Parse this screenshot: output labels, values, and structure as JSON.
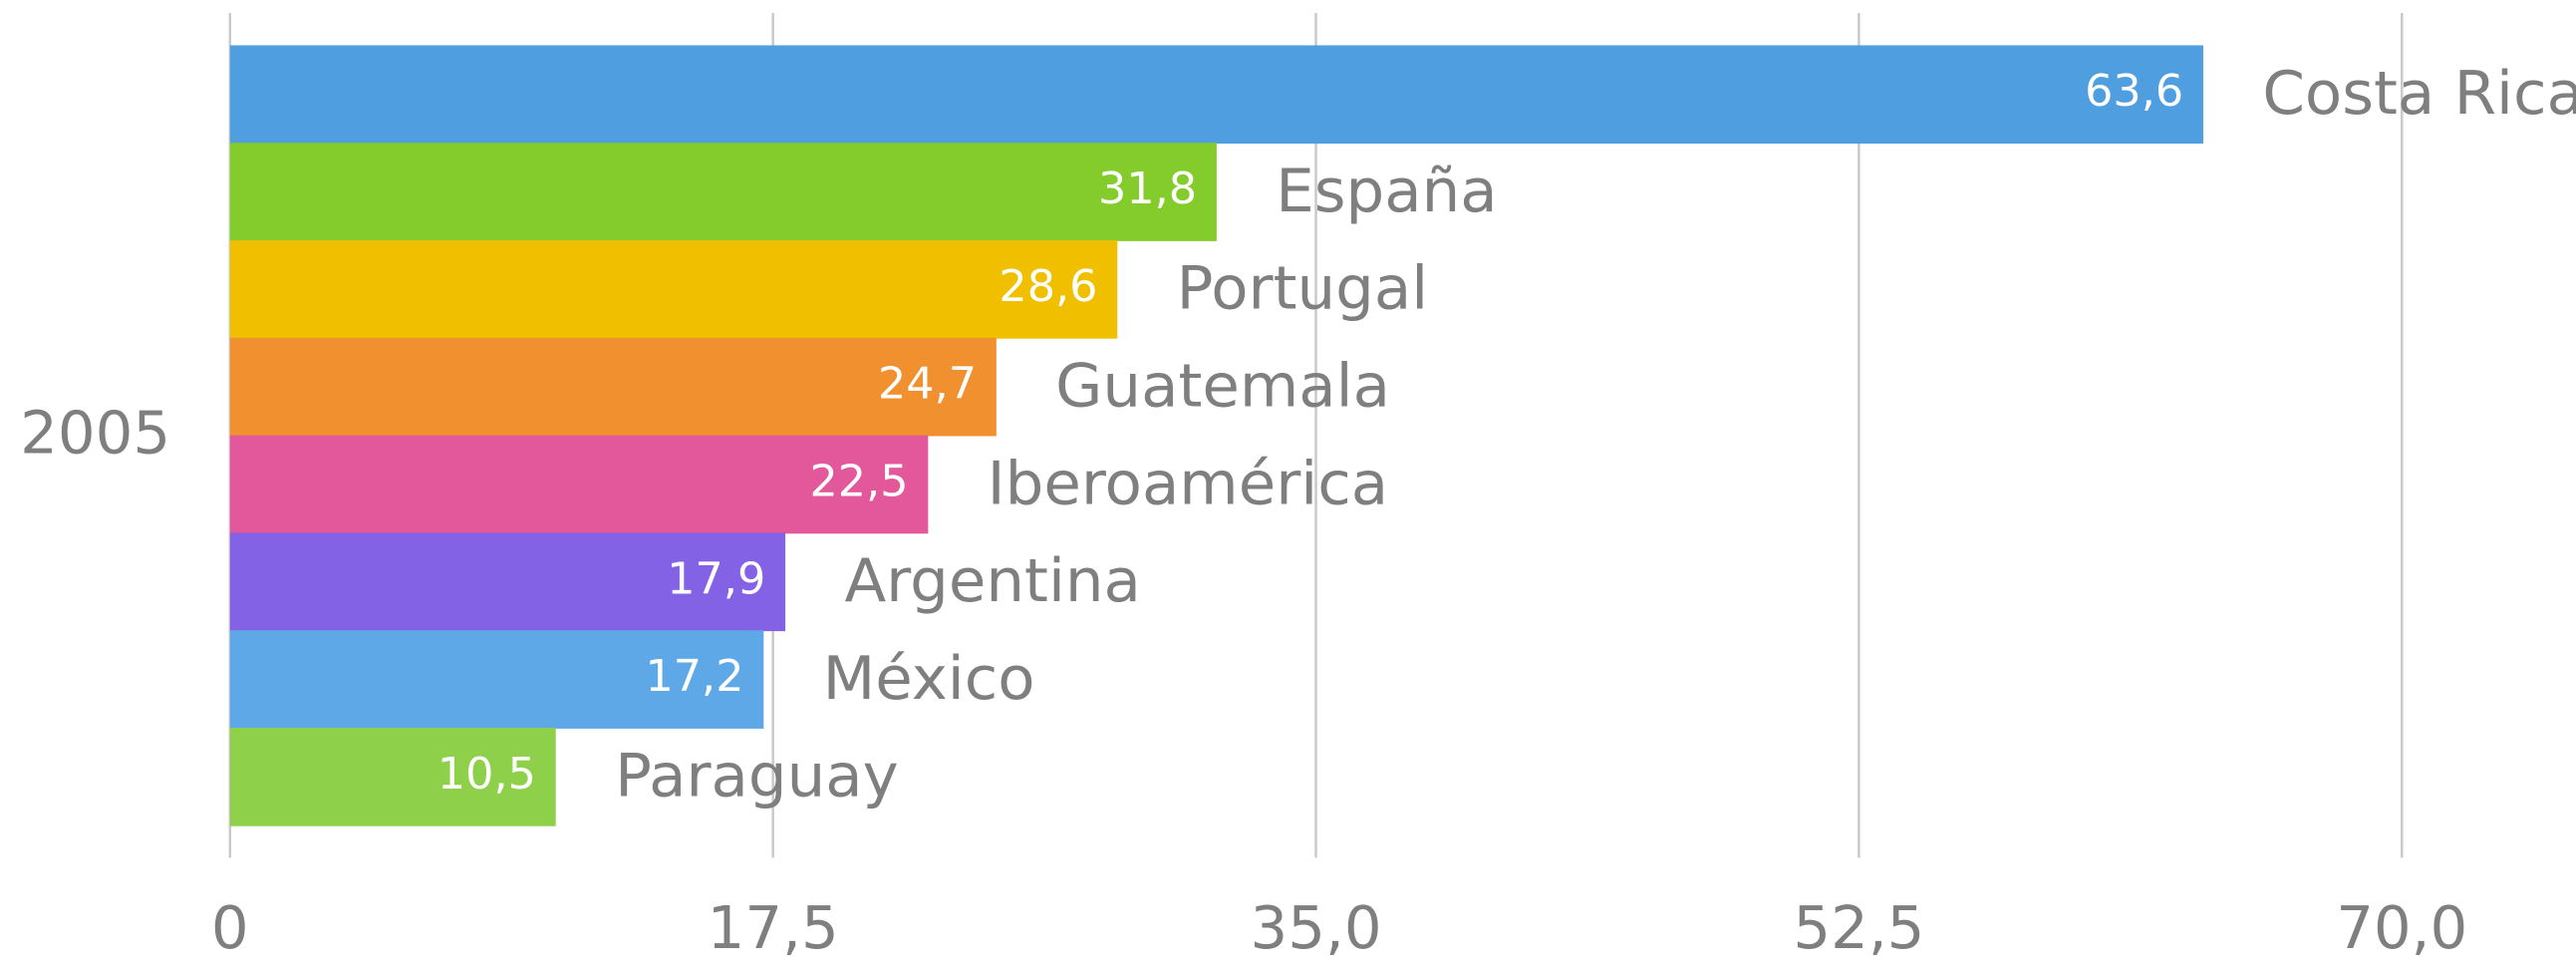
{
  "chart_data": {
    "type": "bar",
    "orientation": "horizontal",
    "categories": [
      "2005"
    ],
    "series": [
      {
        "name": "Costa Rica",
        "color": "#4f9fe0",
        "values": [
          63.6
        ],
        "value_labels": [
          "63,6"
        ]
      },
      {
        "name": "España",
        "color": "#84cb2c",
        "values": [
          31.8
        ],
        "value_labels": [
          "31,8"
        ]
      },
      {
        "name": "Portugal",
        "color": "#f0c000",
        "values": [
          28.6
        ],
        "value_labels": [
          "28,6"
        ]
      },
      {
        "name": "Guatemala",
        "color": "#f0902e",
        "values": [
          24.7
        ],
        "value_labels": [
          "24,7"
        ]
      },
      {
        "name": "Iberoamérica",
        "color": "#e2589a",
        "values": [
          22.5
        ],
        "value_labels": [
          "22,5"
        ]
      },
      {
        "name": "Argentina",
        "color": "#8462e6",
        "values": [
          17.9
        ],
        "value_labels": [
          "17,9"
        ]
      },
      {
        "name": "México",
        "color": "#5ea8e8",
        "values": [
          17.2
        ],
        "value_labels": [
          "17,2"
        ]
      },
      {
        "name": "Paraguay",
        "color": "#8fd04a",
        "values": [
          10.5
        ],
        "value_labels": [
          "10,5"
        ]
      }
    ],
    "xlim": [
      0,
      70
    ],
    "xticks": [
      0,
      {
        "value": 17.5,
        "label": "17,5"
      },
      {
        "value": 35,
        "label": "35,0"
      },
      {
        "value": 52.5,
        "label": "52,5"
      },
      {
        "value": 70,
        "label": "70,0"
      }
    ],
    "grid": true
  }
}
